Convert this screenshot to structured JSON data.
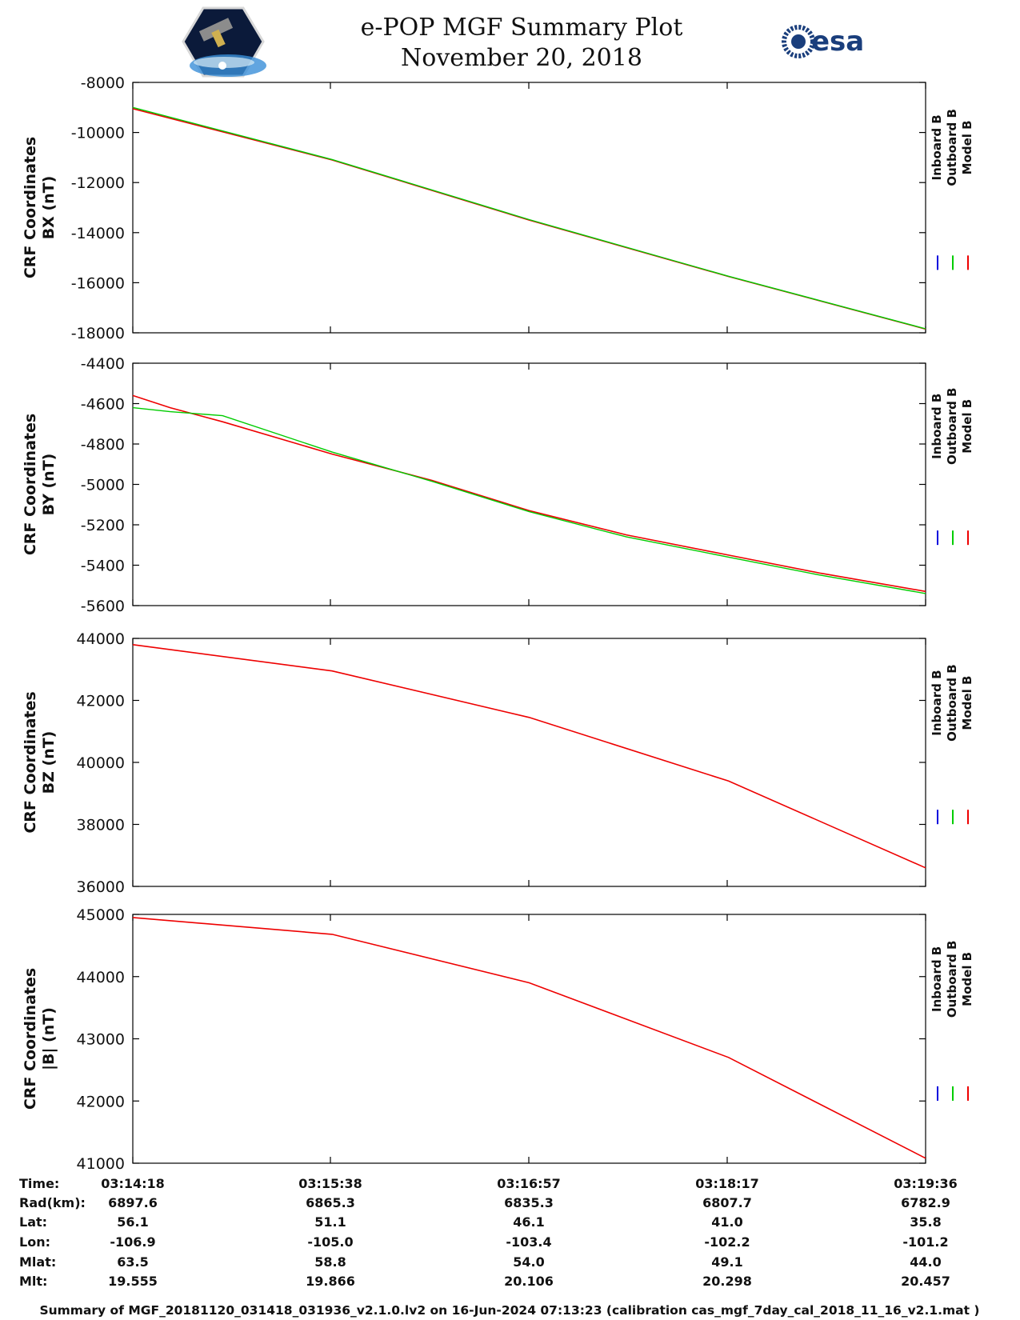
{
  "title": "e-POP MGF Summary Plot",
  "date": "November 20, 2018",
  "logos": {
    "left": "cassiope-mission-logo",
    "right": "esa"
  },
  "colors": {
    "inboard": "#0000dd",
    "outboard": "#00cc00",
    "model": "#ee0000",
    "overlap": "#a0522d"
  },
  "chart_data": [
    {
      "type": "line",
      "ylabel_lines": [
        "CRF Coordinates",
        "BX (nT)"
      ],
      "ylim": [
        -18000,
        -8000
      ],
      "yticks": [
        -18000,
        -16000,
        -14000,
        -12000,
        -10000,
        -8000
      ],
      "ytick_labels": [
        "-18000",
        "-16000",
        "-14000",
        "-12000",
        "-10000",
        "-8000"
      ],
      "legend": [
        "Inboard B",
        "Outboard B",
        "Model B"
      ],
      "x_minutes": [
        0,
        1.333,
        2.65,
        3.983,
        5.3
      ],
      "series": [
        {
          "name": "Model B",
          "values": [
            -9050,
            -11100,
            -13500,
            -15750,
            -17850
          ]
        },
        {
          "name": "Outboard B",
          "values": [
            -9000,
            -11080,
            -13480,
            -15740,
            -17840
          ]
        }
      ]
    },
    {
      "type": "line",
      "ylabel_lines": [
        "CRF Coordinates",
        "BY (nT)"
      ],
      "ylim": [
        -5600,
        -4400
      ],
      "yticks": [
        -5600,
        -5400,
        -5200,
        -5000,
        -4800,
        -4600,
        -4400
      ],
      "ytick_labels": [
        "-5600",
        "-5400",
        "-5200",
        "-5000",
        "-4800",
        "-4600",
        "-4400"
      ],
      "legend": [
        "Inboard B",
        "Outboard B",
        "Model B"
      ],
      "x_minutes": [
        0,
        0.25,
        0.6,
        1.333,
        2,
        2.65,
        3.3,
        3.983,
        4.6,
        5.3
      ],
      "series": [
        {
          "name": "Model B",
          "values": [
            -4560,
            -4620,
            -4690,
            -4850,
            -4980,
            -5130,
            -5250,
            -5350,
            -5440,
            -5530
          ]
        },
        {
          "name": "Outboard B",
          "values": [
            -4620,
            -4640,
            -4660,
            -4840,
            -4985,
            -5135,
            -5260,
            -5360,
            -5450,
            -5540
          ]
        }
      ]
    },
    {
      "type": "line",
      "ylabel_lines": [
        "CRF Coordinates",
        "BZ (nT)"
      ],
      "ylim": [
        36000,
        44000
      ],
      "yticks": [
        36000,
        38000,
        40000,
        42000,
        44000
      ],
      "ytick_labels": [
        "36000",
        "38000",
        "40000",
        "42000",
        "44000"
      ],
      "legend": [
        "Inboard B",
        "Outboard B",
        "Model B"
      ],
      "x_minutes": [
        0,
        1.333,
        2.65,
        3.983,
        5.3
      ],
      "series": [
        {
          "name": "Model B",
          "values": [
            43800,
            42950,
            41450,
            39400,
            36600
          ]
        }
      ]
    },
    {
      "type": "line",
      "ylabel_lines": [
        "CRF Coordinates",
        "|B| (nT)"
      ],
      "ylim": [
        41000,
        45000
      ],
      "yticks": [
        41000,
        42000,
        43000,
        44000,
        45000
      ],
      "ytick_labels": [
        "41000",
        "42000",
        "43000",
        "44000",
        "45000"
      ],
      "legend": [
        "Inboard B",
        "Outboard B",
        "Model B"
      ],
      "x_minutes": [
        0,
        1.333,
        2.65,
        3.983,
        5.3
      ],
      "series": [
        {
          "name": "Model B",
          "values": [
            44950,
            44680,
            43900,
            42700,
            41080
          ]
        }
      ]
    }
  ],
  "ephemeris": {
    "labels": [
      "Time:",
      "Rad(km):",
      "Lat:",
      "Lon:",
      "Mlat:",
      "Mlt:"
    ],
    "columns": [
      [
        "03:14:18",
        "6897.6",
        "56.1",
        "-106.9",
        "63.5",
        "19.555"
      ],
      [
        "03:15:38",
        "6865.3",
        "51.1",
        "-105.0",
        "58.8",
        "19.866"
      ],
      [
        "03:16:57",
        "6835.3",
        "46.1",
        "-103.4",
        "54.0",
        "20.106"
      ],
      [
        "03:18:17",
        "6807.7",
        "41.0",
        "-102.2",
        "49.1",
        "20.298"
      ],
      [
        "03:19:36",
        "6782.9",
        "35.8",
        "-101.2",
        "44.0",
        "20.457"
      ]
    ]
  },
  "footer": "Summary of MGF_20181120_031418_031936_v2.1.0.lv2 on 16-Jun-2024 07:13:23 (calibration cas_mgf_7day_cal_2018_11_16_v2.1.mat )"
}
